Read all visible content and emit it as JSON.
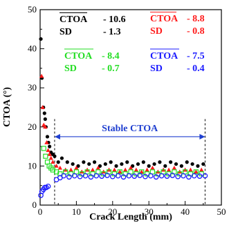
{
  "chart_data": {
    "type": "scatter",
    "xlabel": "Crack Length (mm)",
    "ylabel": "CTOA (°)",
    "xlim": [
      0,
      50
    ],
    "ylim": [
      0,
      50
    ],
    "xticks": [
      "0",
      "10",
      "20",
      "30",
      "40",
      "50"
    ],
    "yticks": [
      "0",
      "10",
      "20",
      "30",
      "40",
      "50"
    ],
    "grid": false,
    "annotation": {
      "label": "Stable CTOA",
      "x_start": 4,
      "x_end": 45.5,
      "y": 17.5,
      "color": "#1f3fd0"
    },
    "stat_boxes": [
      {
        "color": "#000000",
        "ctoa_label": "CTOA",
        "ctoa_value": "- 10.6",
        "sd_label": "SD",
        "sd_value": "- 1.3"
      },
      {
        "color": "#ff1a1a",
        "ctoa_label": "CTOA",
        "ctoa_value": "- 8.8",
        "sd_label": "SD",
        "sd_value": "- 0.8"
      },
      {
        "color": "#22dd22",
        "ctoa_label": "CTOA",
        "ctoa_value": "- 8.4",
        "sd_label": "SD",
        "sd_value": "- 0.7"
      },
      {
        "color": "#1a1aff",
        "ctoa_label": "CTOA",
        "ctoa_value": "- 7.5",
        "sd_label": "SD",
        "sd_value": "- 0.4"
      }
    ],
    "series": [
      {
        "marker": "filled-circle",
        "color": "#000000",
        "points": [
          [
            0.2,
            42.5
          ],
          [
            0.5,
            32.5
          ],
          [
            0.9,
            25
          ],
          [
            1.2,
            23.5
          ],
          [
            1.4,
            22
          ],
          [
            1.6,
            20
          ],
          [
            2.0,
            17.5
          ],
          [
            2.3,
            16
          ],
          [
            2.6,
            15
          ],
          [
            3.0,
            13.5
          ],
          [
            3.5,
            13
          ],
          [
            4.0,
            12.5
          ],
          [
            5.0,
            11
          ],
          [
            6.0,
            12
          ],
          [
            7.5,
            11
          ],
          [
            9.0,
            10.5
          ],
          [
            10.5,
            10
          ],
          [
            12.0,
            11
          ],
          [
            13.5,
            10.5
          ],
          [
            15.0,
            11
          ],
          [
            16.5,
            10
          ],
          [
            18.0,
            10.5
          ],
          [
            19.5,
            11
          ],
          [
            21.0,
            10
          ],
          [
            22.5,
            10.5
          ],
          [
            24.0,
            11
          ],
          [
            25.5,
            10
          ],
          [
            27.0,
            10.5
          ],
          [
            28.5,
            11
          ],
          [
            30.0,
            10
          ],
          [
            31.5,
            10.5
          ],
          [
            33.0,
            11
          ],
          [
            34.5,
            10
          ],
          [
            36.0,
            11
          ],
          [
            37.5,
            10.5
          ],
          [
            39.0,
            10
          ],
          [
            40.5,
            11
          ],
          [
            42.0,
            10.5
          ],
          [
            43.5,
            10
          ],
          [
            45.0,
            10.5
          ]
        ]
      },
      {
        "marker": "filled-triangle",
        "color": "#ff1a1a",
        "points": [
          [
            0.4,
            33
          ],
          [
            0.7,
            25
          ],
          [
            1.0,
            20.5
          ],
          [
            1.4,
            20
          ],
          [
            1.8,
            16
          ],
          [
            2.2,
            14
          ],
          [
            2.6,
            13
          ],
          [
            3.0,
            12
          ],
          [
            3.5,
            11
          ],
          [
            4.5,
            10
          ],
          [
            5.5,
            9.5
          ],
          [
            7.0,
            9
          ],
          [
            8.5,
            9
          ],
          [
            10.0,
            9.5
          ],
          [
            11.5,
            8.5
          ],
          [
            13.0,
            9
          ],
          [
            14.5,
            9
          ],
          [
            16.0,
            9.5
          ],
          [
            17.5,
            8.5
          ],
          [
            19.0,
            9
          ],
          [
            20.5,
            9
          ],
          [
            22.0,
            8.5
          ],
          [
            23.5,
            9
          ],
          [
            25.0,
            9.5
          ],
          [
            26.5,
            9
          ],
          [
            28.0,
            8.5
          ],
          [
            29.5,
            9
          ],
          [
            31.0,
            9.5
          ],
          [
            32.5,
            8.5
          ],
          [
            34.0,
            9
          ],
          [
            35.5,
            9
          ],
          [
            37.0,
            9.5
          ],
          [
            38.5,
            8.5
          ],
          [
            40.0,
            9
          ],
          [
            41.5,
            9
          ],
          [
            43.0,
            8.5
          ],
          [
            44.5,
            9
          ]
        ]
      },
      {
        "marker": "open-square",
        "color": "#22dd22",
        "points": [
          [
            1.0,
            14.5
          ],
          [
            1.5,
            12.5
          ],
          [
            2.0,
            11
          ],
          [
            2.5,
            10
          ],
          [
            3.0,
            9.5
          ],
          [
            3.5,
            9
          ],
          [
            4.5,
            8.5
          ],
          [
            5.5,
            8
          ],
          [
            7.0,
            8.5
          ],
          [
            8.5,
            8
          ],
          [
            10.0,
            8.5
          ],
          [
            11.5,
            8
          ],
          [
            13.0,
            8.5
          ],
          [
            14.5,
            8
          ],
          [
            16.0,
            8.5
          ],
          [
            17.5,
            8
          ],
          [
            19.0,
            8.5
          ],
          [
            20.5,
            8
          ],
          [
            22.0,
            8.5
          ],
          [
            23.5,
            8
          ],
          [
            25.0,
            8.5
          ],
          [
            26.5,
            8
          ],
          [
            28.0,
            8.5
          ],
          [
            29.5,
            8
          ],
          [
            31.0,
            8.5
          ],
          [
            32.5,
            8
          ],
          [
            34.0,
            8.5
          ],
          [
            35.5,
            8
          ],
          [
            37.0,
            8.5
          ],
          [
            38.5,
            8
          ],
          [
            40.0,
            8.5
          ],
          [
            41.5,
            8
          ],
          [
            43.0,
            8.5
          ],
          [
            44.5,
            8
          ]
        ]
      },
      {
        "marker": "open-circle",
        "color": "#1a1aff",
        "points": [
          [
            0.2,
            2.5
          ],
          [
            0.5,
            3.5
          ],
          [
            0.9,
            4
          ],
          [
            1.3,
            4.5
          ],
          [
            1.7,
            4.5
          ],
          [
            2.2,
            4.8
          ],
          [
            4.5,
            6.5
          ],
          [
            5.5,
            7
          ],
          [
            6.5,
            7.5
          ],
          [
            8.0,
            7.2
          ],
          [
            9.5,
            7.5
          ],
          [
            11.0,
            7.3
          ],
          [
            12.5,
            7.5
          ],
          [
            14.0,
            7.2
          ],
          [
            15.5,
            7.5
          ],
          [
            17.0,
            7.4
          ],
          [
            18.5,
            7.6
          ],
          [
            20.0,
            7.3
          ],
          [
            21.5,
            7.5
          ],
          [
            23.0,
            7.2
          ],
          [
            24.5,
            7.5
          ],
          [
            26.0,
            7.4
          ],
          [
            27.5,
            7.6
          ],
          [
            29.0,
            7.3
          ],
          [
            30.5,
            7.5
          ],
          [
            32.0,
            7.2
          ],
          [
            33.5,
            7.5
          ],
          [
            35.0,
            7.4
          ],
          [
            36.5,
            7.6
          ],
          [
            38.0,
            7.3
          ],
          [
            39.5,
            7.5
          ],
          [
            41.0,
            7.2
          ],
          [
            42.5,
            7.5
          ],
          [
            44.0,
            7.4
          ],
          [
            45.5,
            7.5
          ]
        ]
      }
    ]
  }
}
